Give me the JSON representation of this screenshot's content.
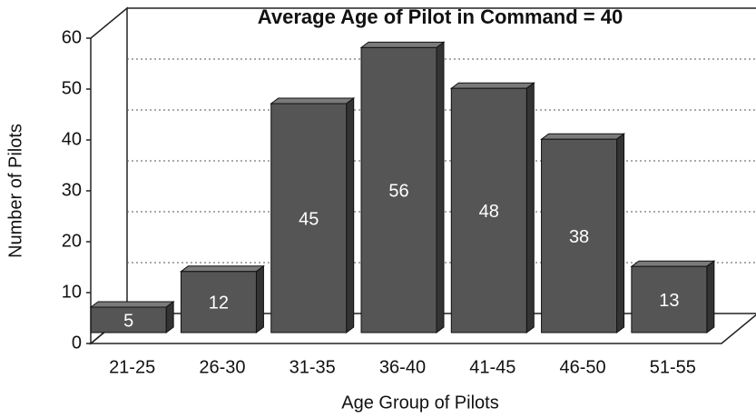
{
  "chart_data": {
    "type": "bar",
    "title": "Average Age of Pilot in Command = 40",
    "x_label": "Age Group of Pilots",
    "y_label": "Number of Pilots",
    "categories": [
      "21-25",
      "26-30",
      "31-35",
      "36-40",
      "41-45",
      "46-50",
      "51-55"
    ],
    "values": [
      5,
      12,
      45,
      56,
      48,
      38,
      13
    ],
    "color": "#555555",
    "ylim": [
      0,
      60
    ],
    "yticks": [
      0,
      10,
      20,
      30,
      40,
      50,
      60
    ],
    "grid": true
  }
}
